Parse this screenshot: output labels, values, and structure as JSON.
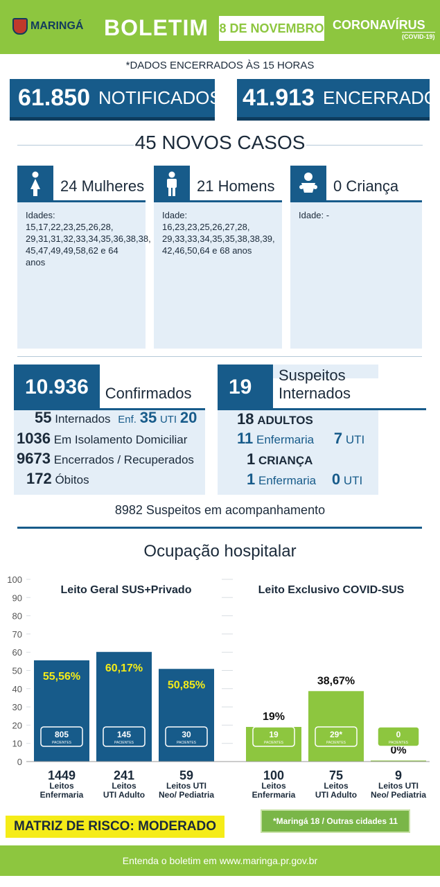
{
  "header": {
    "city": "MARINGÁ",
    "title": "BOLETIM",
    "date": "8 DE NOVEMBRO",
    "corona": "CORONAVÍRUS",
    "covid": "(COVID-19)"
  },
  "note": "*DADOS ENCERRADOS ÀS 15 HORAS",
  "totals": {
    "notificados_num": "61.850",
    "notificados_lbl": "NOTIFICADOS",
    "encerrados_num": "41.913",
    "encerrados_lbl": "ENCERRADOS"
  },
  "novos": "45 NOVOS CASOS",
  "cards": [
    {
      "title": "24 Mulheres",
      "body": "Idades: 15,17,22,23,25,26,28, 29,31,31,32,33,34,35,36,38,38, 45,47,49,49,58,62 e 64 anos",
      "icon": "woman-icon"
    },
    {
      "title": "21 Homens",
      "body": "Idade: 16,23,23,25,26,27,28, 29,33,33,34,35,35,38,38,39, 42,46,50,64 e 68 anos",
      "icon": "man-icon"
    },
    {
      "title": "0 Criança",
      "body": "Idade: -",
      "icon": "baby-icon"
    }
  ],
  "confirmados": {
    "num": "10.936",
    "label": "Confirmados",
    "internados_num": "55",
    "internados_lbl": "Internados",
    "enf_lbl": "Enf.",
    "enf_num": "35",
    "uti_lbl": "UTI",
    "uti_num": "20",
    "isol_num": "1036",
    "isol_lbl": "Em Isolamento Domiciliar",
    "enc_num": "9673",
    "enc_lbl": "Encerrados / Recuperados",
    "obitos_num": "172",
    "obitos_lbl": "Óbitos"
  },
  "suspeitos": {
    "num": "19",
    "label": "Suspeitos Internados",
    "adultos_num": "18",
    "adultos_lbl": "ADULTOS",
    "a_enf_num": "11",
    "a_enf_lbl": "Enfermaria",
    "a_uti_num": "7",
    "a_uti_lbl": "UTI",
    "crianca_num": "1",
    "crianca_lbl": "CRIANÇA",
    "c_enf_num": "1",
    "c_enf_lbl": "Enfermaria",
    "c_uti_num": "0",
    "c_uti_lbl": "UTI"
  },
  "acompanhamento": "8982 Suspeitos em acompanhamento",
  "ocupacao": "Ocupação hospitalar",
  "chart_data": {
    "type": "bar",
    "ylim": [
      0,
      100
    ],
    "yticks": [
      0,
      10,
      20,
      30,
      40,
      50,
      60,
      70,
      80,
      90,
      100
    ],
    "groups": [
      {
        "title": "Leito Geral SUS+Privado",
        "color": "#175b8a",
        "bars": [
          {
            "value": 55.56,
            "label": "55,56%",
            "pacientes": "805",
            "leitos": "1449",
            "cat1": "Leitos",
            "cat2": "Enfermaria"
          },
          {
            "value": 60.17,
            "label": "60,17%",
            "pacientes": "145",
            "leitos": "241",
            "cat1": "Leitos",
            "cat2": "UTI Adulto"
          },
          {
            "value": 50.85,
            "label": "50,85%",
            "pacientes": "30",
            "leitos": "59",
            "cat1": "Leitos UTI",
            "cat2": "Neo/ Pediatria"
          }
        ]
      },
      {
        "title": "Leito Exclusivo COVID-SUS",
        "color": "#8dc63f",
        "bars": [
          {
            "value": 19,
            "label": "19%",
            "pacientes": "19",
            "leitos": "100",
            "cat1": "Leitos",
            "cat2": "Enfermaria"
          },
          {
            "value": 38.67,
            "label": "38,67%",
            "pacientes": "29*",
            "leitos": "75",
            "cat1": "Leitos",
            "cat2": "UTI Adulto"
          },
          {
            "value": 0,
            "label": "0%",
            "pacientes": "0",
            "leitos": "9",
            "cat1": "Leitos UTI",
            "cat2": "Neo/ Pediatria"
          }
        ]
      }
    ],
    "pacientes_lbl": "PACIENTES"
  },
  "matriz": "MATRIZ DE RISCO: MODERADO",
  "maringa_note": "*Maringá 18 / Outras cidades 11",
  "footer": "Entenda o boletim em www.maringa.pr.gov.br"
}
